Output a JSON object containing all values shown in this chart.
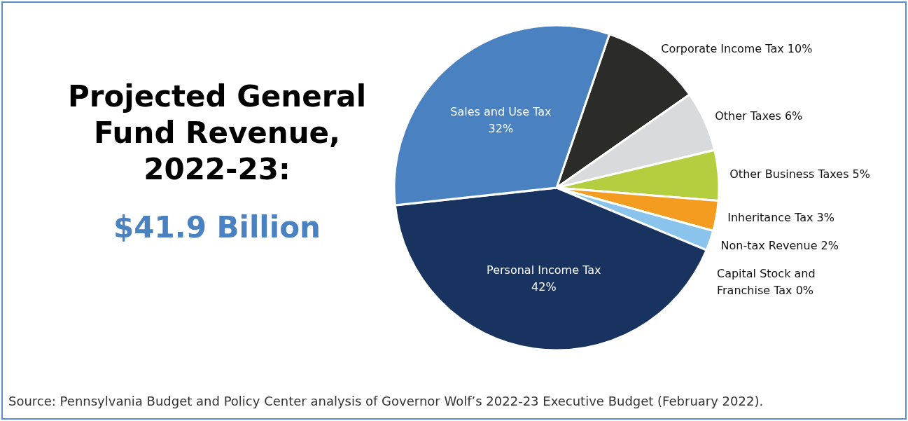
{
  "chart_data": {
    "type": "pie",
    "title": "Projected General Fund Revenue, 2022-23:",
    "subtitle": "$41.9 Billion",
    "categories": [
      "Corporate Income Tax",
      "Other Taxes",
      "Other Business Taxes",
      "Inheritance Tax",
      "Non-tax Revenue",
      "Capital Stock and Franchise Tax",
      "Personal Income Tax",
      "Sales and Use Tax"
    ],
    "values": [
      10,
      6,
      5,
      3,
      2,
      0,
      42,
      32
    ],
    "value_labels": [
      "10%",
      "6%",
      "5%",
      "3%",
      "2%",
      "0%",
      "42%",
      "32%"
    ],
    "colors": [
      "#2b2c28",
      "#d9dadc",
      "#b3cf3f",
      "#f39c1f",
      "#8ac4ec",
      "#5b8fc9",
      "#18335f",
      "#4a81c1"
    ],
    "annotations": [
      "Source: Pennsylvania Budget and Policy Center analysis of Governor Wolf’s 2022-23 Executive Budget (February 2022)."
    ]
  }
}
